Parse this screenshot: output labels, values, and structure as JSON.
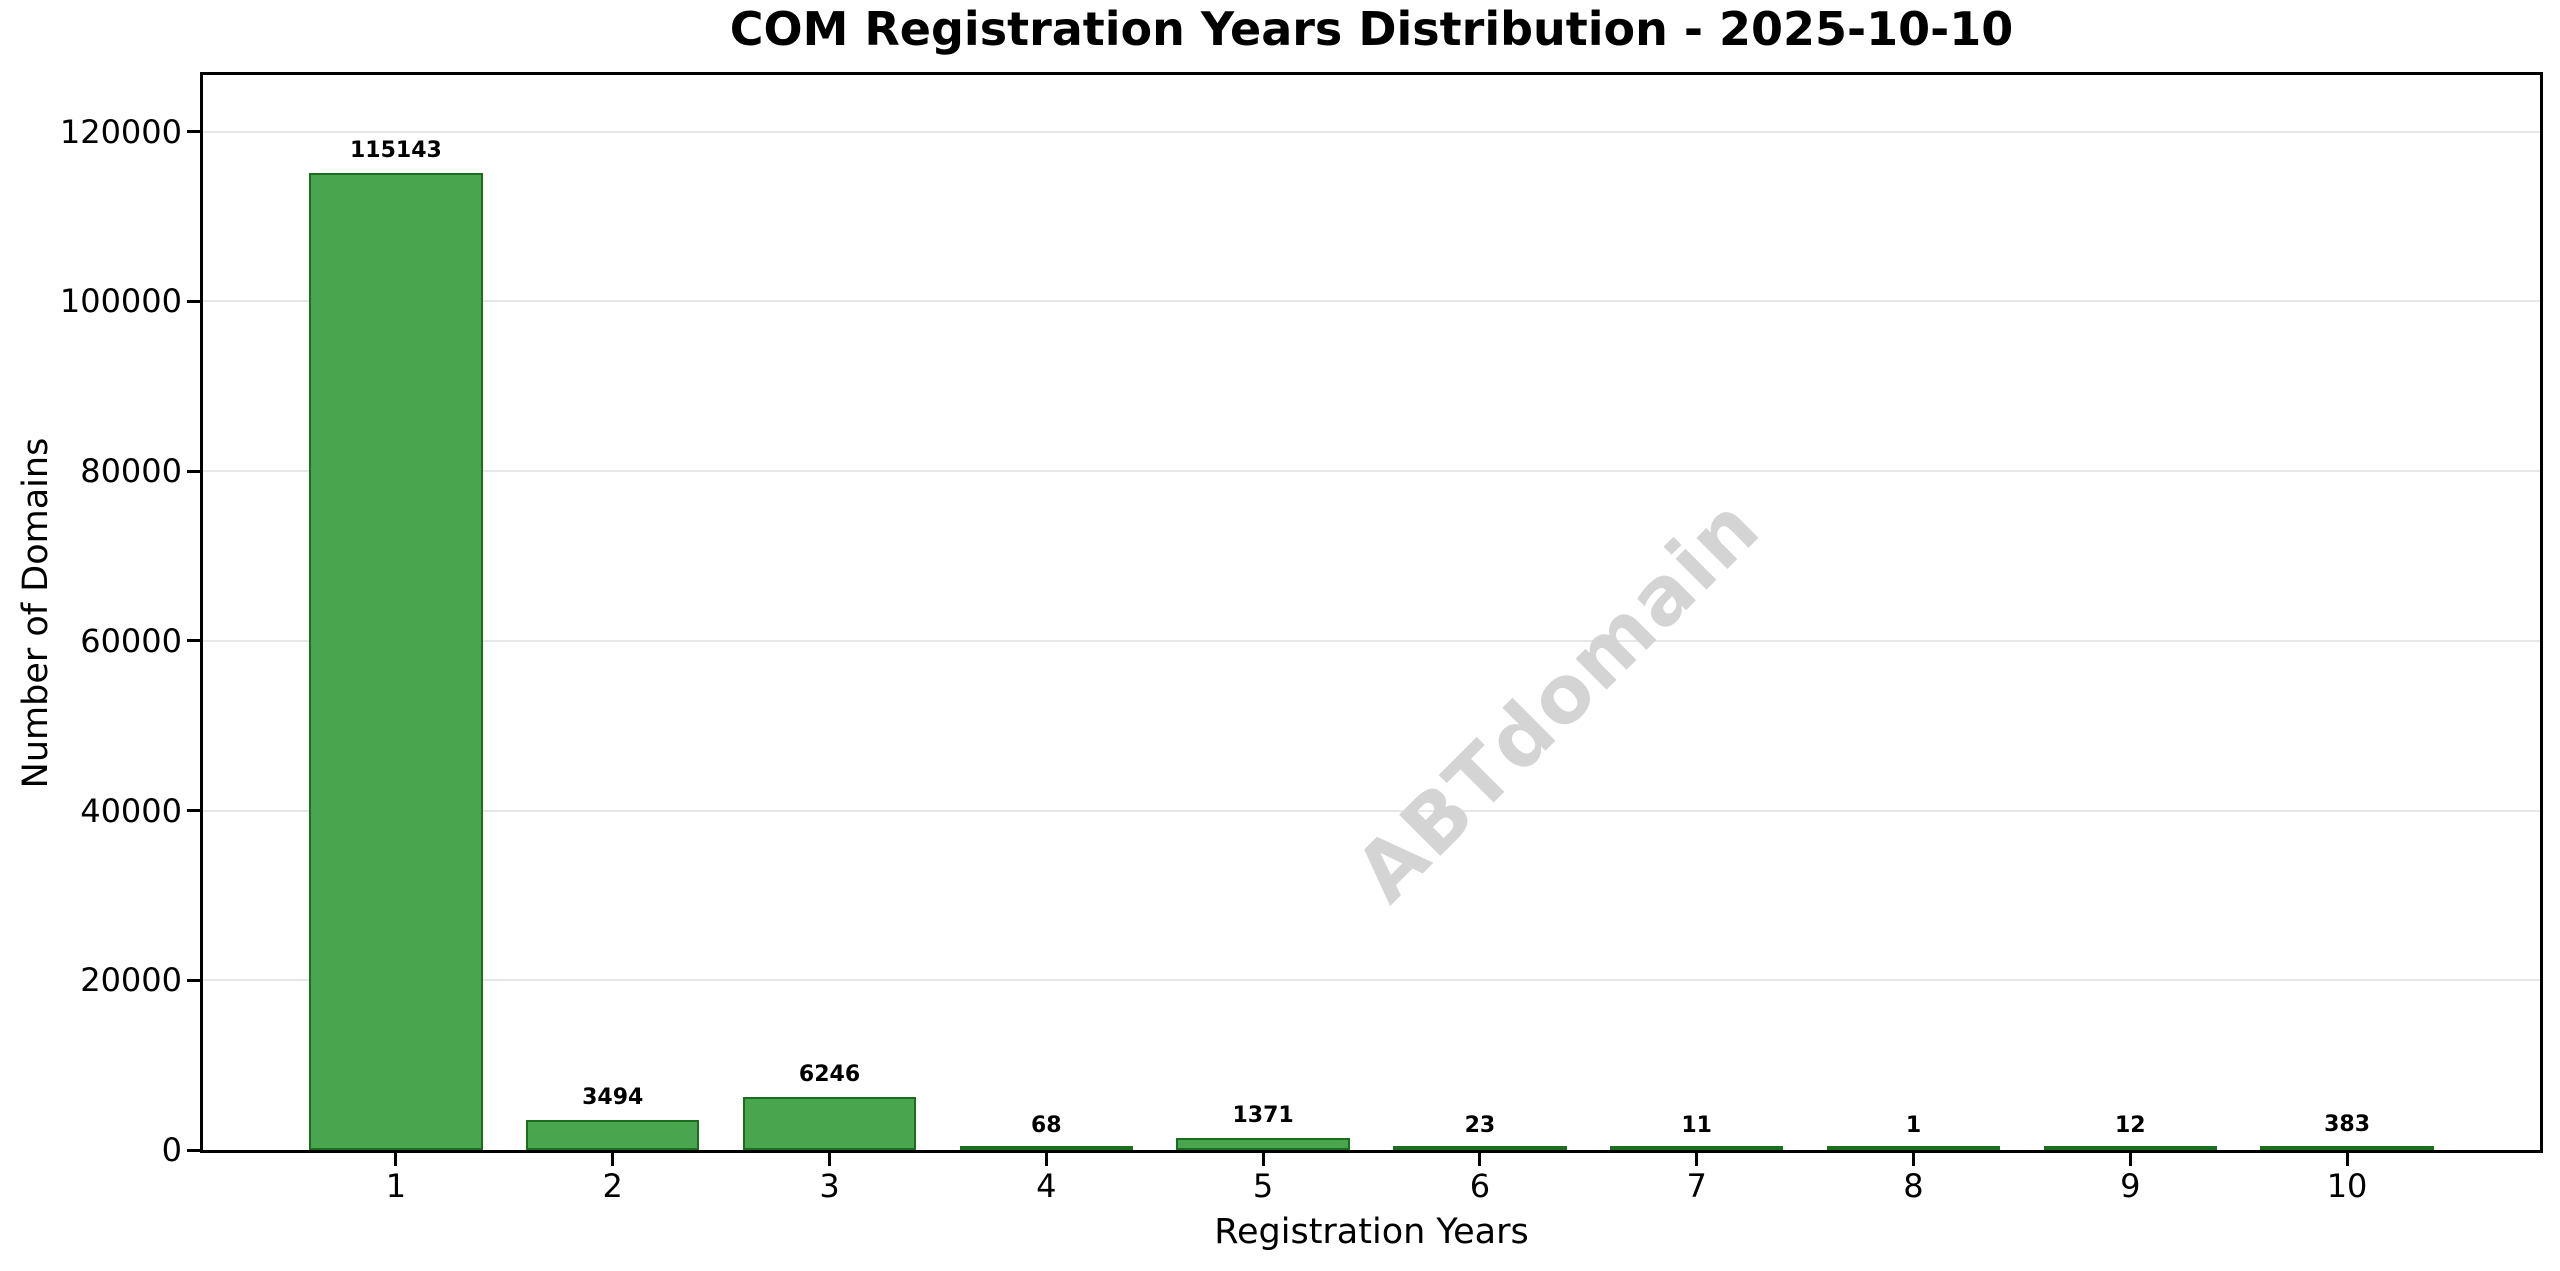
{
  "title": "COM Registration Years Distribution - 2025-10-10",
  "watermark": "ABTdomain",
  "axes": {
    "xlabel": "Registration Years",
    "ylabel": "Number of Domains"
  },
  "chart_data": {
    "type": "bar",
    "title": "COM Registration Years Distribution - 2025-10-10",
    "xlabel": "Registration Years",
    "ylabel": "Number of Domains",
    "categories": [
      "1",
      "2",
      "3",
      "4",
      "5",
      "6",
      "7",
      "8",
      "9",
      "10"
    ],
    "values": [
      115143,
      3494,
      6246,
      68,
      1371,
      23,
      11,
      1,
      12,
      383
    ],
    "bar_value_labels": [
      "115143",
      "3494",
      "6246",
      "68",
      "1371",
      "23",
      "11",
      "1",
      "12",
      "383"
    ],
    "ylim": [
      0,
      126657
    ],
    "yticks": [
      0,
      20000,
      40000,
      60000,
      80000,
      100000,
      120000
    ],
    "ytick_labels": [
      "0",
      "20000",
      "40000",
      "60000",
      "80000",
      "100000",
      "120000"
    ],
    "grid": true,
    "legend_position": "none",
    "watermark": "ABTdomain",
    "colors": {
      "bar_fill": "#4aa64e",
      "bar_edge": "#1a6e1e",
      "gridline": "#e7e7e7",
      "spine": "#000000",
      "text": "#000000",
      "watermark": "#d4d4d4",
      "background": "#ffffff"
    }
  }
}
